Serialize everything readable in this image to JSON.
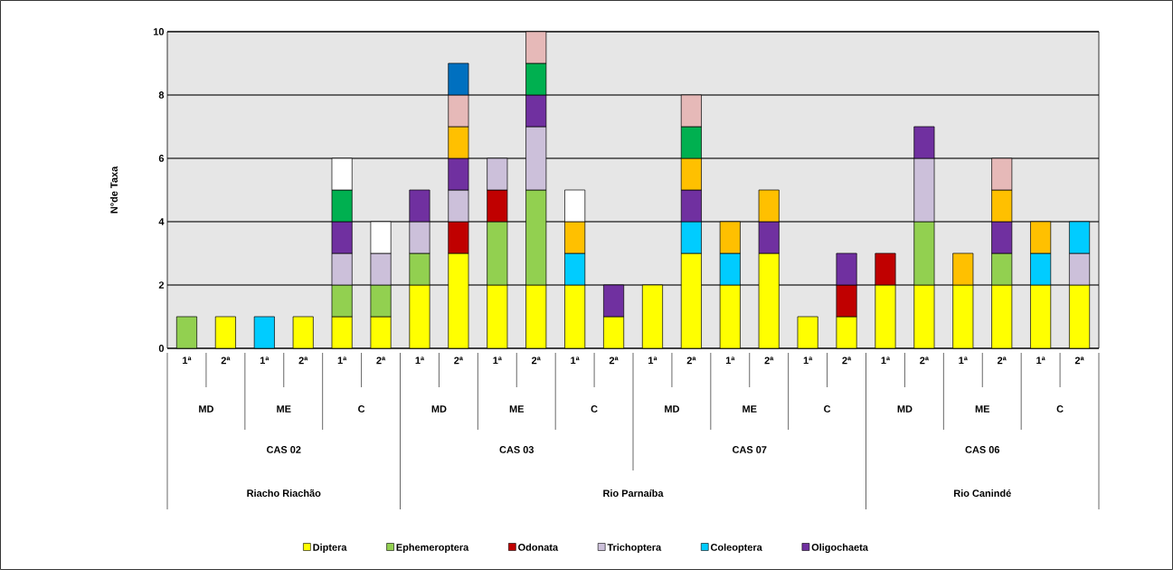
{
  "chart_data": {
    "type": "bar",
    "stacked": true,
    "ylabel": "N°de Taxa",
    "categories": [
      "1ª",
      "2ª",
      "1ª",
      "2ª",
      "1ª",
      "2ª",
      "1ª",
      "2ª",
      "1ª",
      "2ª",
      "1ª",
      "2ª",
      "1ª",
      "2ª",
      "1ª",
      "2ª",
      "1ª",
      "2ª",
      "1ª",
      "2ª",
      "1ª",
      "2ª",
      "1ª",
      "2ª"
    ],
    "annotations": [
      "MD",
      "ME",
      "C",
      "MD",
      "ME",
      "C",
      "MD",
      "ME",
      "C",
      "MD",
      "ME",
      "C",
      "CAS 02",
      "CAS 03",
      "CAS 07",
      "CAS 06",
      "Riacho Riachão",
      "Rio Parnaíba",
      "Rio Canindé"
    ],
    "ylim": [
      0,
      10
    ],
    "yticks": [
      0,
      2,
      4,
      6,
      8,
      10
    ],
    "grid": "y",
    "legend": "bottom",
    "series": [
      {
        "name": "Diptera",
        "color": "#ffff00",
        "values": [
          null,
          1,
          null,
          1,
          1,
          1,
          2,
          3,
          2,
          2,
          2,
          1,
          2,
          3,
          2,
          3,
          1,
          1,
          2,
          2,
          2,
          2,
          2,
          2
        ]
      },
      {
        "name": "Ephemeroptera",
        "color": "#92d050",
        "values": [
          1,
          null,
          null,
          null,
          1,
          1,
          1,
          null,
          2,
          3,
          null,
          null,
          null,
          null,
          null,
          null,
          null,
          null,
          null,
          2,
          null,
          1,
          null,
          null
        ]
      },
      {
        "name": "Odonata",
        "color": "#c00000",
        "values": [
          null,
          null,
          null,
          null,
          null,
          null,
          null,
          1,
          1,
          null,
          null,
          null,
          null,
          null,
          null,
          null,
          null,
          1,
          1,
          null,
          null,
          null,
          null,
          null
        ]
      },
      {
        "name": "Trichoptera",
        "color": "#ccc0da",
        "values": [
          null,
          null,
          null,
          null,
          1,
          1,
          1,
          1,
          1,
          2,
          null,
          null,
          null,
          null,
          null,
          null,
          null,
          null,
          null,
          2,
          null,
          null,
          null,
          1
        ]
      },
      {
        "name": "Coleoptera",
        "color": "#00ccff",
        "values": [
          null,
          null,
          1,
          null,
          null,
          null,
          null,
          null,
          null,
          null,
          1,
          null,
          null,
          1,
          1,
          null,
          null,
          null,
          null,
          null,
          null,
          null,
          1,
          1
        ]
      },
      {
        "name": "Oligochaeta",
        "color": "#7030a0",
        "values": [
          null,
          null,
          null,
          null,
          1,
          null,
          1,
          1,
          null,
          1,
          null,
          1,
          null,
          1,
          null,
          1,
          null,
          1,
          null,
          1,
          null,
          1,
          null,
          null
        ]
      },
      {
        "color": "#ffc000",
        "values": [
          null,
          null,
          null,
          null,
          null,
          null,
          null,
          1,
          null,
          null,
          1,
          null,
          null,
          1,
          1,
          1,
          null,
          null,
          null,
          null,
          1,
          1,
          1,
          null
        ]
      },
      {
        "color": "#00b050",
        "values": [
          null,
          null,
          null,
          null,
          1,
          null,
          null,
          null,
          null,
          1,
          null,
          null,
          null,
          1,
          null,
          null,
          null,
          null,
          null,
          null,
          null,
          null,
          null,
          null
        ]
      },
      {
        "color": "#e6b9b8",
        "values": [
          null,
          null,
          null,
          null,
          null,
          null,
          null,
          1,
          null,
          1,
          null,
          null,
          null,
          1,
          null,
          null,
          null,
          null,
          null,
          null,
          null,
          1,
          null,
          null
        ]
      },
      {
        "color": "#0070c0",
        "values": [
          null,
          null,
          null,
          null,
          null,
          null,
          null,
          1,
          null,
          null,
          null,
          null,
          null,
          null,
          null,
          null,
          null,
          null,
          null,
          null,
          null,
          null,
          null,
          null
        ]
      },
      {
        "color": "#ffffff",
        "values": [
          null,
          null,
          null,
          null,
          1,
          1,
          null,
          null,
          null,
          null,
          1,
          null,
          null,
          null,
          null,
          null,
          null,
          null,
          null,
          null,
          null,
          null,
          null,
          null
        ]
      }
    ]
  }
}
